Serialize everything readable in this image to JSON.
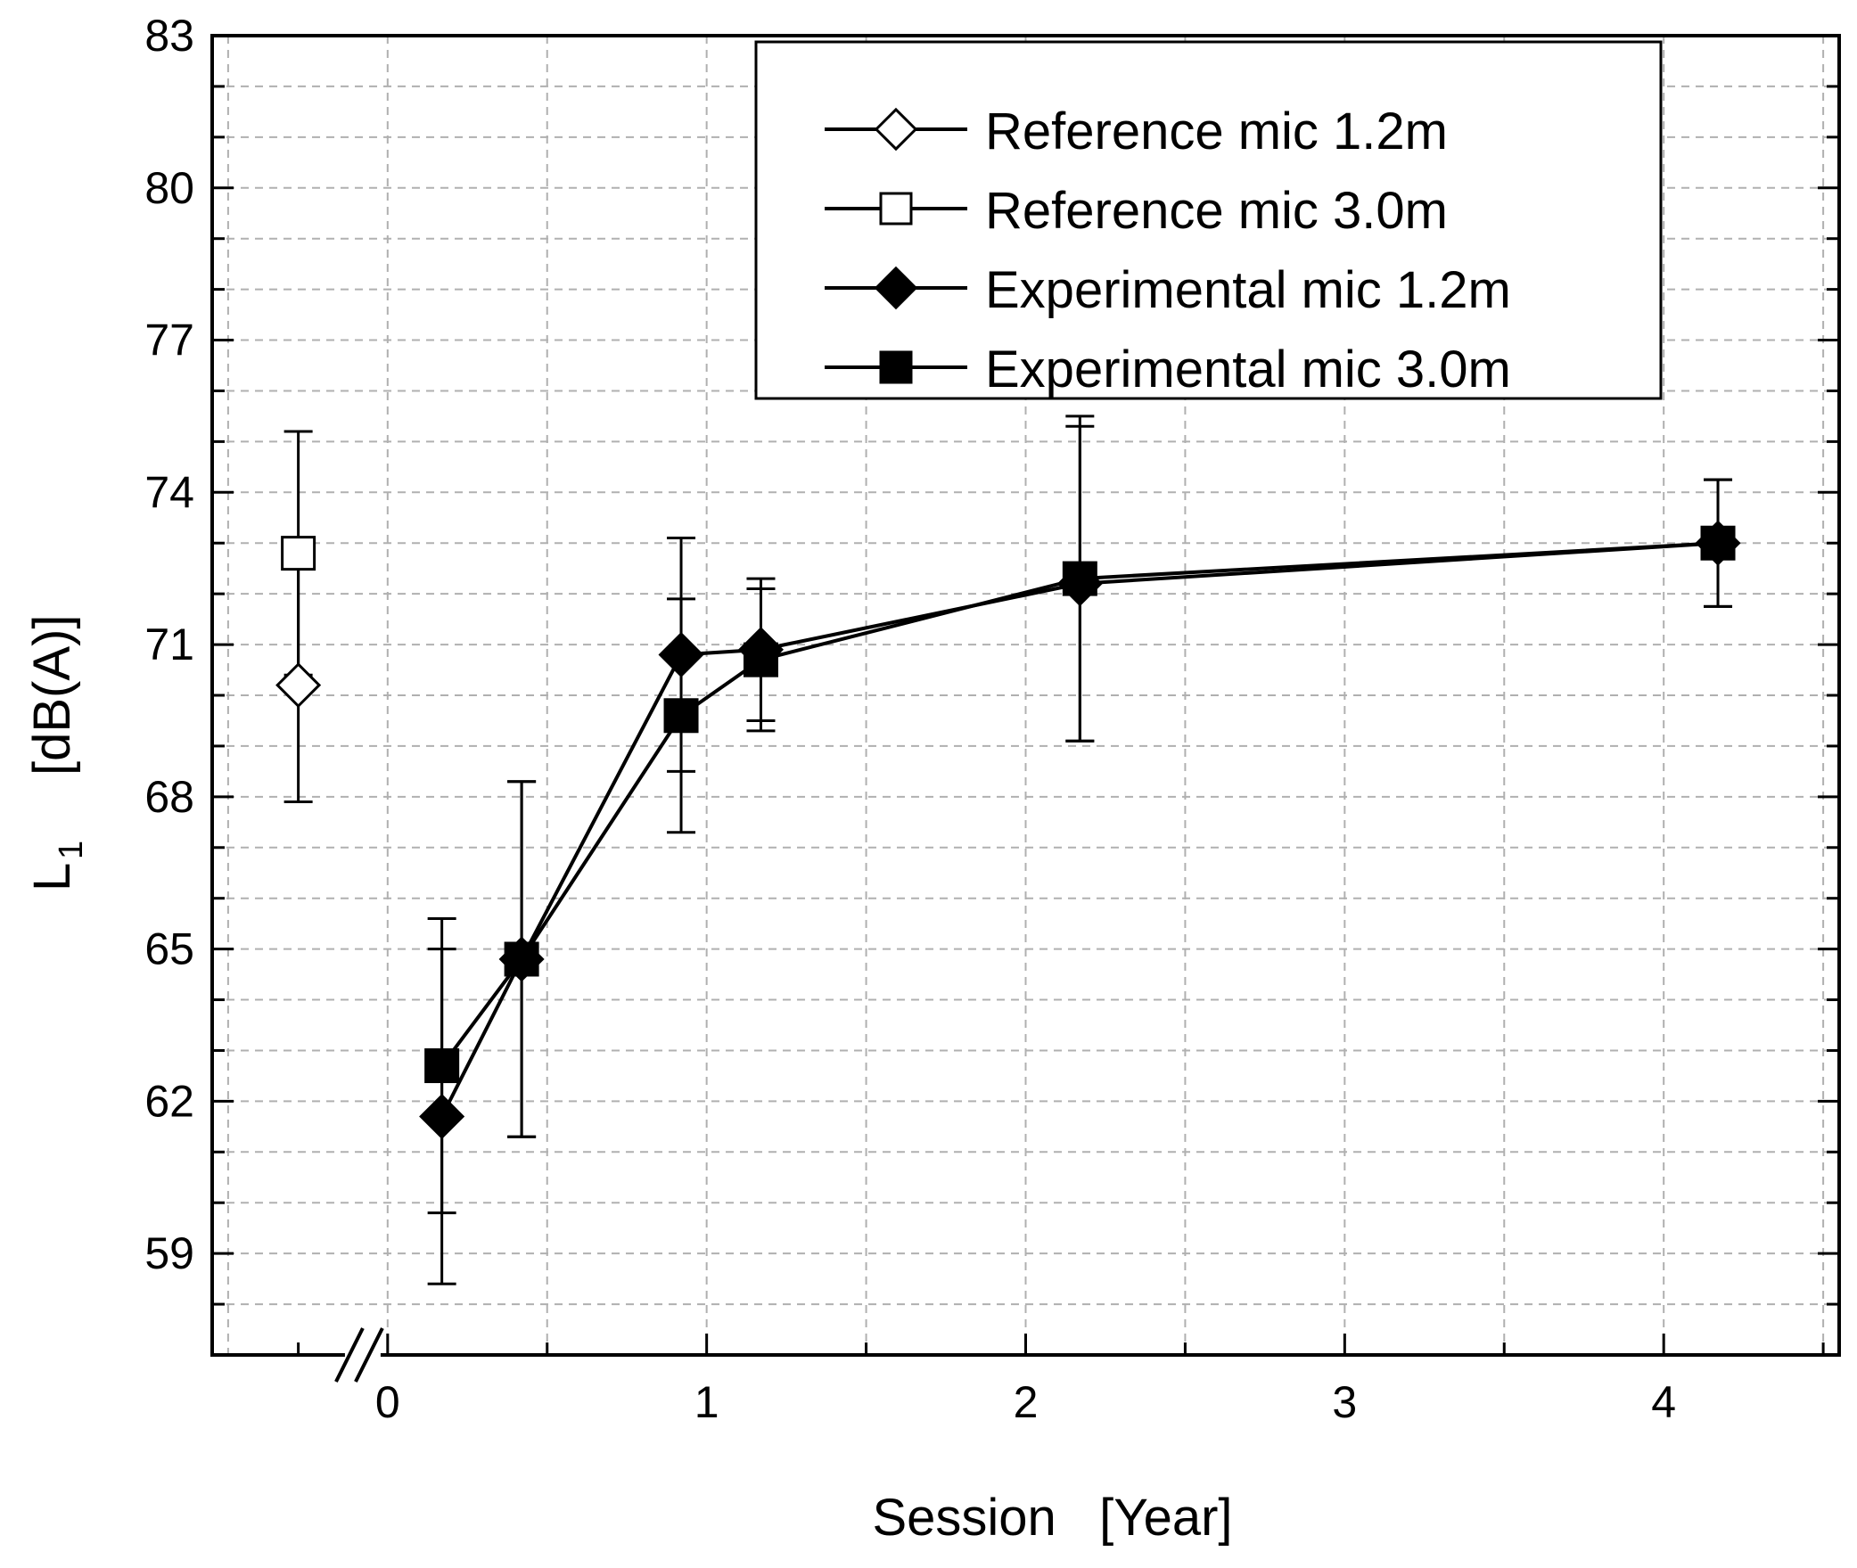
{
  "chart_data": {
    "type": "line",
    "xlabel": "Session   [Year]",
    "ylabel_main": "L",
    "ylabel_sub": "1",
    "ylabel_unit": "[dB(A)]",
    "xlim": [
      -0.55,
      4.55
    ],
    "ylim": [
      57,
      83
    ],
    "xticks": [
      0,
      1,
      2,
      3,
      4
    ],
    "xtick_labels": [
      "0",
      "1",
      "2",
      "3",
      "4"
    ],
    "yticks": [
      59,
      62,
      65,
      68,
      71,
      74,
      77,
      80,
      83
    ],
    "ytick_labels": [
      "59",
      "62",
      "65",
      "68",
      "71",
      "74",
      "77",
      "80",
      "83"
    ],
    "axis_break": {
      "x": -0.05
    },
    "grid": true,
    "legend_position": "top-right",
    "series": [
      {
        "name": "Reference mic 1.2m",
        "marker": "diamond-open",
        "points": [
          {
            "x": -0.28,
            "y": 70.2,
            "err": 2.3
          }
        ]
      },
      {
        "name": "Reference mic 3.0m",
        "marker": "square-open",
        "points": [
          {
            "x": -0.28,
            "y": 72.8,
            "err": 2.4
          }
        ]
      },
      {
        "name": "Experimental mic 1.2m",
        "marker": "diamond-filled",
        "points": [
          {
            "x": 0.17,
            "y": 61.7,
            "err": 3.3
          },
          {
            "x": 0.42,
            "y": 64.8,
            "err": 3.5
          },
          {
            "x": 0.92,
            "y": 70.8,
            "err": 2.3
          },
          {
            "x": 1.17,
            "y": 70.9,
            "err": 1.4
          },
          {
            "x": 2.17,
            "y": 72.2,
            "err": 3.1
          },
          {
            "x": 4.17,
            "y": 73.0,
            "err": 1.25
          }
        ]
      },
      {
        "name": "Experimental mic 3.0m",
        "marker": "square-filled",
        "points": [
          {
            "x": 0.17,
            "y": 62.7,
            "err": 2.9
          },
          {
            "x": 0.42,
            "y": 64.8,
            "err": 3.5
          },
          {
            "x": 0.92,
            "y": 69.6,
            "err": 2.3
          },
          {
            "x": 1.17,
            "y": 70.7,
            "err": 1.4
          },
          {
            "x": 2.17,
            "y": 72.3,
            "err": 3.2
          },
          {
            "x": 4.17,
            "y": 73.0,
            "err": 1.25
          }
        ]
      }
    ]
  }
}
